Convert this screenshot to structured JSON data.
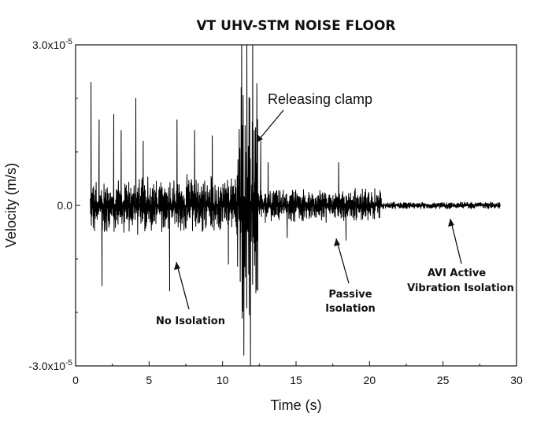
{
  "chart_data": {
    "type": "line",
    "title": "VT UHV-STM NOISE FLOOR",
    "xlabel": "Time (s)",
    "ylabel": "Velocity (m/s)",
    "xlim": [
      0,
      30
    ],
    "ylim": [
      -3e-05,
      3e-05
    ],
    "x_ticks": [
      0,
      5,
      10,
      15,
      20,
      25,
      30
    ],
    "y_ticks": [
      {
        "value": 3e-05,
        "base": "3.0x10",
        "exp": "-5"
      },
      {
        "value": 0,
        "base": "0.0",
        "exp": ""
      },
      {
        "value": -3e-05,
        "base": "-3.0x10",
        "exp": "-5"
      }
    ],
    "grid": false,
    "legend": "none",
    "series": [
      {
        "segments": [
          {
            "x_start": 1.0,
            "x_end": 11.0,
            "amplitude": 6e-06,
            "spikes": [
              {
                "x": 1.05,
                "y": 2.3e-05
              },
              {
                "x": 1.6,
                "y": 1.6e-05
              },
              {
                "x": 1.8,
                "y": -1.5e-05
              },
              {
                "x": 2.6,
                "y": 1.7e-05
              },
              {
                "x": 3.1,
                "y": 1.4e-05
              },
              {
                "x": 4.1,
                "y": 2e-05
              },
              {
                "x": 4.6,
                "y": 1.2e-05
              },
              {
                "x": 6.4,
                "y": -1.6e-05
              },
              {
                "x": 6.9,
                "y": 1.6e-05
              },
              {
                "x": 8.1,
                "y": 1.4e-05
              },
              {
                "x": 9.3,
                "y": 1.3e-05
              },
              {
                "x": 10.4,
                "y": -1.1e-05
              }
            ]
          },
          {
            "x_start": 11.0,
            "x_end": 12.4,
            "amplitude": 2.6e-05,
            "spikes": [
              {
                "x": 11.3,
                "y": 3e-05
              },
              {
                "x": 11.45,
                "y": -2.8e-05
              },
              {
                "x": 11.65,
                "y": 3e-05
              },
              {
                "x": 11.9,
                "y": -3e-05
              },
              {
                "x": 12.05,
                "y": 3e-05
              }
            ]
          },
          {
            "x_start": 12.4,
            "x_end": 20.8,
            "amplitude": 3.5e-06,
            "spikes": [
              {
                "x": 12.6,
                "y": 1.2e-05
              },
              {
                "x": 13.1,
                "y": 8e-06
              },
              {
                "x": 14.4,
                "y": -6e-06
              },
              {
                "x": 17.9,
                "y": 8e-06
              },
              {
                "x": 18.4,
                "y": -6.5e-06
              }
            ]
          },
          {
            "x_start": 20.8,
            "x_end": 28.9,
            "amplitude": 7e-07,
            "spikes": []
          }
        ]
      }
    ],
    "annotations": [
      {
        "text": [
          "Releasing clamp"
        ],
        "style": "plain",
        "target": [
          12.2,
          1e-05
        ]
      },
      {
        "text": [
          "No Isolation"
        ],
        "style": "bold",
        "target": [
          6.9,
          -2.2e-06
        ]
      },
      {
        "text": [
          "Passive",
          "Isolation"
        ],
        "style": "bold",
        "target": [
          17.6,
          -1.3e-06
        ]
      },
      {
        "text": [
          "AVI Active",
          "Vibration Isolation"
        ],
        "style": "bold",
        "target": [
          25.3,
          -5e-07
        ]
      }
    ]
  }
}
